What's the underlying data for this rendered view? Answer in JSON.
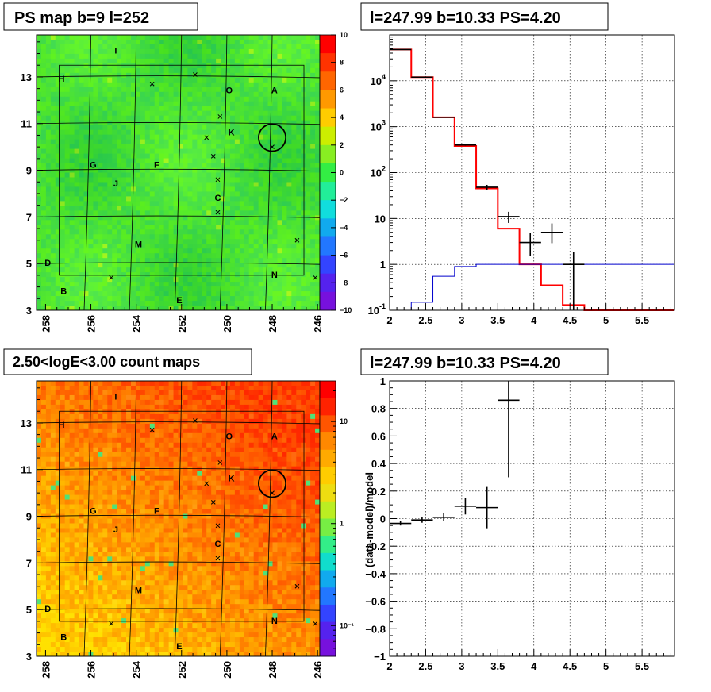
{
  "colors": {
    "background": "#ffffff",
    "frame": "#000000",
    "model_line": "#ff0000",
    "exposure_line": "#0000cc",
    "data_marker": "#000000",
    "residual_map_base": "#33ee44",
    "count_map_base": "#ffbb11"
  },
  "panels": {
    "ps_map": {
      "title": "PS map b=9 l=252",
      "x_ticks": [
        "258",
        "256",
        "254",
        "252",
        "250",
        "248",
        "246"
      ],
      "y_ticks": [
        "3",
        "5",
        "7",
        "9",
        "11",
        "13"
      ],
      "colorbar_ticks": [
        "10",
        "8",
        "6",
        "4",
        "2",
        "0",
        "−2",
        "−4",
        "−6",
        "−8",
        "−10"
      ]
    },
    "count_map": {
      "title": "2.50<logE<3.00 count maps",
      "x_ticks": [
        "258",
        "256",
        "254",
        "252",
        "250",
        "248",
        "246"
      ],
      "y_ticks": [
        "3",
        "5",
        "7",
        "9",
        "11",
        "13"
      ],
      "colorbar_ticks": [
        "10",
        "1",
        "10⁻¹"
      ]
    },
    "spectrum": {
      "title": "l=247.99 b=10.33 PS=4.20"
    },
    "residual": {
      "title": "l=247.99 b=10.33 PS=4.20",
      "ylabel": "(data-model)/model"
    }
  },
  "region_labels": [
    {
      "id": "I",
      "l": 254.9,
      "b": 14.0
    },
    {
      "id": "H",
      "l": 257.3,
      "b": 12.8
    },
    {
      "id": "O",
      "l": 249.9,
      "b": 12.3
    },
    {
      "id": "A",
      "l": 247.9,
      "b": 12.3
    },
    {
      "id": "K",
      "l": 249.8,
      "b": 10.5
    },
    {
      "id": "G",
      "l": 255.9,
      "b": 9.1
    },
    {
      "id": "F",
      "l": 253.1,
      "b": 9.1
    },
    {
      "id": "J",
      "l": 254.9,
      "b": 8.3
    },
    {
      "id": "C",
      "l": 250.4,
      "b": 7.7
    },
    {
      "id": "M",
      "l": 253.9,
      "b": 5.7
    },
    {
      "id": "D",
      "l": 257.9,
      "b": 4.9
    },
    {
      "id": "N",
      "l": 247.9,
      "b": 4.4
    },
    {
      "id": "B",
      "l": 257.2,
      "b": 3.7
    },
    {
      "id": "E",
      "l": 252.1,
      "b": 3.3
    }
  ],
  "source_crosses": [
    {
      "l": 253.3,
      "b": 12.7
    },
    {
      "l": 251.4,
      "b": 13.1
    },
    {
      "l": 250.3,
      "b": 11.3
    },
    {
      "l": 250.9,
      "b": 10.4
    },
    {
      "l": 250.6,
      "b": 9.6
    },
    {
      "l": 250.4,
      "b": 8.6
    },
    {
      "l": 250.4,
      "b": 7.2
    },
    {
      "l": 246.9,
      "b": 6.0
    },
    {
      "l": 255.1,
      "b": 4.4
    },
    {
      "l": 246.1,
      "b": 4.4
    },
    {
      "l": 248.0,
      "b": 10.0
    }
  ],
  "target_circle": {
    "l": 248.0,
    "b": 10.4,
    "r_deg": 0.5
  },
  "roi_box": {
    "l_min": 246.6,
    "l_max": 257.4,
    "b_min": 4.5,
    "b_max": 13.5
  },
  "chart_data": [
    {
      "type": "heatmap",
      "title": "PS map b=9 l=252",
      "xlabel": "",
      "ylabel": "",
      "xlim": [
        258.4,
        245.9
      ],
      "ylim": [
        3,
        14.8
      ],
      "zlim": [
        -10,
        10
      ],
      "x_ticks": [
        258,
        256,
        254,
        252,
        250,
        248,
        246
      ],
      "y_ticks": [
        3,
        5,
        7,
        9,
        11,
        13
      ]
    },
    {
      "type": "line",
      "title": "l=247.99 b=10.33 PS=4.20",
      "xlabel": "",
      "ylabel": "",
      "xlim": [
        2,
        5.95
      ],
      "ylim": [
        0.1,
        100000
      ],
      "y_scale": "log",
      "grid": true,
      "x_ticks": [
        2,
        2.5,
        3,
        3.5,
        4,
        4.5,
        5,
        5.5
      ],
      "y_ticks": [
        0.1,
        1,
        10,
        100,
        1000,
        10000
      ],
      "series": [
        {
          "style": "step",
          "color": "#ff0000",
          "bin_edges": [
            2.0,
            2.3,
            2.6,
            2.9,
            3.2,
            3.5,
            3.8,
            4.1,
            4.4,
            4.7,
            5.0,
            5.3,
            5.6,
            5.95
          ],
          "values": [
            48000,
            12000,
            1600,
            380,
            45,
            6,
            1,
            0.35,
            0.13,
            0.1,
            0.1,
            0.1,
            0.1
          ]
        },
        {
          "style": "step",
          "color": "#0000cc",
          "bin_edges": [
            2.0,
            2.3,
            2.6,
            2.9,
            3.2,
            3.5,
            3.8,
            4.1,
            4.4,
            4.7,
            5.0,
            5.3,
            5.6,
            5.95
          ],
          "values": [
            0.05,
            0.15,
            0.55,
            0.9,
            1.0,
            1.0,
            1.0,
            1.0,
            1.0,
            1.0,
            1.0,
            1.0,
            1.0
          ]
        },
        {
          "style": "errorbar",
          "color": "#000000",
          "points": [
            {
              "x": 2.15,
              "y": 48000,
              "xerr": 0.15,
              "ylo": 47500,
              "yhi": 48500
            },
            {
              "x": 2.45,
              "y": 12000,
              "xerr": 0.15,
              "ylo": 11800,
              "yhi": 12200
            },
            {
              "x": 2.75,
              "y": 1600,
              "xerr": 0.15,
              "ylo": 1560,
              "yhi": 1640
            },
            {
              "x": 3.05,
              "y": 400,
              "xerr": 0.15,
              "ylo": 385,
              "yhi": 415
            },
            {
              "x": 3.35,
              "y": 48,
              "xerr": 0.15,
              "ylo": 42,
              "yhi": 54
            },
            {
              "x": 3.65,
              "y": 11,
              "xerr": 0.15,
              "ylo": 8,
              "yhi": 14
            },
            {
              "x": 3.95,
              "y": 3,
              "xerr": 0.15,
              "ylo": 1.5,
              "yhi": 4.8
            },
            {
              "x": 4.25,
              "y": 5,
              "xerr": 0.15,
              "ylo": 2.9,
              "yhi": 7.8
            },
            {
              "x": 4.55,
              "y": 1,
              "xerr": 0.15,
              "ylo": 0.1,
              "yhi": 1.9
            }
          ]
        }
      ]
    },
    {
      "type": "heatmap",
      "title": "2.50<logE<3.00 count maps",
      "xlabel": "",
      "ylabel": "",
      "xlim": [
        258.4,
        245.9
      ],
      "ylim": [
        3,
        14.8
      ],
      "z_scale": "log",
      "zlim": [
        0.05,
        25
      ],
      "x_ticks": [
        258,
        256,
        254,
        252,
        250,
        248,
        246
      ],
      "y_ticks": [
        3,
        5,
        7,
        9,
        11,
        13
      ]
    },
    {
      "type": "scatter",
      "title": "l=247.99 b=10.33 PS=4.20",
      "xlabel": "",
      "ylabel": "(data-model)/model",
      "xlim": [
        2,
        5.95
      ],
      "ylim": [
        -1,
        1
      ],
      "grid": true,
      "x_ticks": [
        2,
        2.5,
        3,
        3.5,
        4,
        4.5,
        5,
        5.5
      ],
      "y_ticks": [
        -1,
        -0.8,
        -0.6,
        -0.4,
        -0.2,
        0,
        0.2,
        0.4,
        0.6,
        0.8,
        1
      ],
      "series": [
        {
          "style": "errorbar",
          "color": "#000000",
          "points": [
            {
              "x": 2.15,
              "y": -0.035,
              "xerr": 0.15,
              "yerr": 0.015
            },
            {
              "x": 2.45,
              "y": -0.01,
              "xerr": 0.15,
              "yerr": 0.02
            },
            {
              "x": 2.75,
              "y": 0.01,
              "xerr": 0.15,
              "yerr": 0.03
            },
            {
              "x": 3.05,
              "y": 0.09,
              "xerr": 0.15,
              "yerr": 0.06
            },
            {
              "x": 3.35,
              "y": 0.08,
              "xerr": 0.15,
              "yerr": 0.15
            },
            {
              "x": 3.65,
              "y": 0.86,
              "xerr": 0.15,
              "yerr": 0.56
            }
          ]
        }
      ]
    }
  ]
}
